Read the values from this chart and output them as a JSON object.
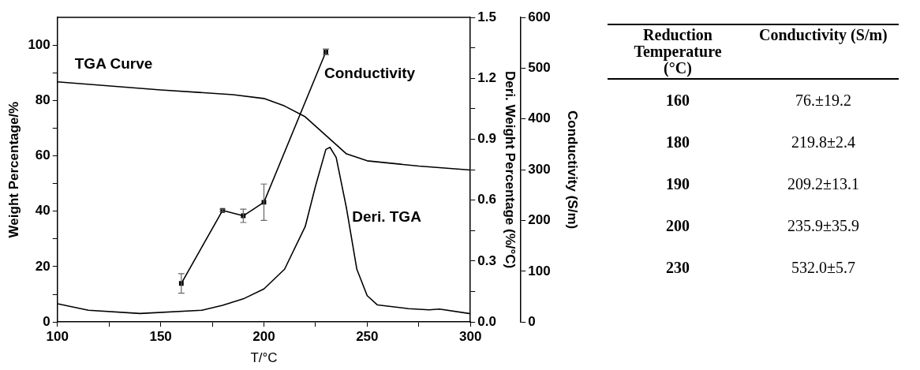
{
  "chart_data": [
    {
      "type": "line",
      "xlabel": "T/°C",
      "ylabel": "Weight Percentage/%",
      "y2label": "Deri. Weight Percentage (%/°C)",
      "y3label": "Conductivity (S/m)",
      "xlim": [
        100,
        300
      ],
      "xticks": [
        100,
        {
          "value": 125,
          "label": null
        },
        150,
        {
          "value": 175,
          "label": null
        },
        200,
        {
          "value": 225,
          "label": null
        },
        250,
        {
          "value": 275,
          "label": null
        },
        300
      ],
      "ylim": [
        0,
        110
      ],
      "yticks": [
        0,
        {
          "value": 10,
          "label": null
        },
        20,
        {
          "value": 30,
          "label": null
        },
        40,
        {
          "value": 50,
          "label": null
        },
        60,
        {
          "value": 70,
          "label": null
        },
        80,
        {
          "value": 90,
          "label": null
        },
        100
      ],
      "y2lim": [
        0,
        1.5
      ],
      "y2ticks": [
        {
          "value": 0,
          "label": "0.0"
        },
        {
          "value": 0.15,
          "label": null
        },
        0.3,
        {
          "value": 0.45,
          "label": null
        },
        0.6,
        {
          "value": 0.75,
          "label": null
        },
        0.9,
        {
          "value": 1.05,
          "label": null
        },
        1.2,
        {
          "value": 1.35,
          "label": null
        },
        1.5
      ],
      "y3lim": [
        0,
        600
      ],
      "y3ticks": [
        0,
        100,
        200,
        300,
        400,
        500,
        600
      ],
      "grid": false,
      "legend": false,
      "series": [
        {
          "name": "TGA Curve",
          "color": "#000000",
          "marker": "none",
          "x": [
            100,
            150,
            185,
            200,
            210,
            220,
            230,
            240,
            250,
            275,
            300
          ],
          "values": [
            86.7,
            83.8,
            82.1,
            80.7,
            78,
            74.1,
            67.4,
            60.7,
            58.2,
            56.3,
            54.9
          ]
        },
        {
          "name": "Deri. TGA",
          "color": "#000000",
          "axis": "y2",
          "marker": "none",
          "x": [
            100,
            115,
            140,
            170,
            180,
            190,
            200,
            210,
            220,
            225,
            230,
            232,
            235,
            240,
            245,
            250,
            255,
            270,
            280,
            285,
            300
          ],
          "values": [
            0.09,
            0.058,
            0.042,
            0.058,
            0.082,
            0.114,
            0.163,
            0.26,
            0.47,
            0.67,
            0.85,
            0.86,
            0.81,
            0.56,
            0.26,
            0.13,
            0.084,
            0.066,
            0.06,
            0.064,
            0.041
          ]
        },
        {
          "name": "Conductivity",
          "color": "#000000",
          "axis": "y3",
          "marker": "square",
          "x": [
            160,
            180,
            190,
            200,
            230
          ],
          "values": [
            76,
            219.8,
            209.2,
            235.9,
            532.0
          ],
          "errors": [
            19.2,
            2.4,
            13.1,
            35.9,
            5.7
          ]
        }
      ]
    },
    {
      "type": "other",
      "categories": [
        "Reduction Temperature (°C)",
        "Conductivity (S/m)"
      ],
      "cell_labels": [
        [
          "160",
          "76.±19.2"
        ],
        [
          "180",
          "219.8±2.4"
        ],
        [
          "190",
          "209.2±13.1"
        ],
        [
          "200",
          "235.9±35.9"
        ],
        [
          "230",
          "532.0±5.7"
        ]
      ]
    }
  ]
}
